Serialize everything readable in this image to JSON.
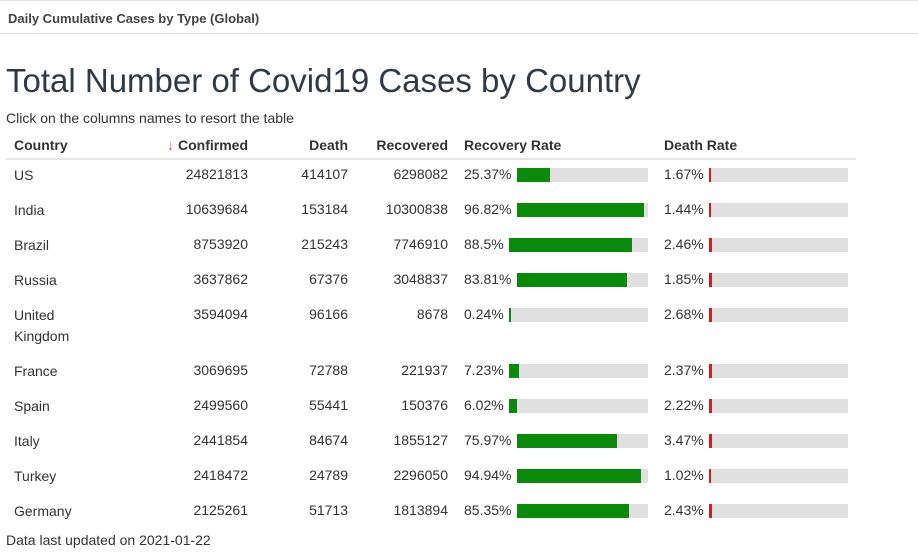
{
  "header": {
    "title": "Daily Cumulative Cases by Type (Global)"
  },
  "page_title": "Total Number of Covid19 Cases by Country",
  "subtitle": "Click on the columns names to resort the table",
  "table": {
    "columns": {
      "country": "Country",
      "sort_indicator": "↓",
      "confirmed": "Confirmed",
      "death": "Death",
      "recovered": "Recovered",
      "recovery_rate": "Recovery Rate",
      "death_rate": "Death Rate"
    },
    "rows": [
      {
        "country": "US",
        "confirmed": "24821813",
        "death": "414107",
        "recovered": "6298082",
        "recovery_rate": "25.37%",
        "recovery_fraction": 0.2537,
        "death_rate": "1.67%",
        "death_fraction": 0.0167
      },
      {
        "country": "India",
        "confirmed": "10639684",
        "death": "153184",
        "recovered": "10300838",
        "recovery_rate": "96.82%",
        "recovery_fraction": 0.9682,
        "death_rate": "1.44%",
        "death_fraction": 0.0144
      },
      {
        "country": "Brazil",
        "confirmed": "8753920",
        "death": "215243",
        "recovered": "7746910",
        "recovery_rate": "88.5%",
        "recovery_fraction": 0.885,
        "death_rate": "2.46%",
        "death_fraction": 0.0246
      },
      {
        "country": "Russia",
        "confirmed": "3637862",
        "death": "67376",
        "recovered": "3048837",
        "recovery_rate": "83.81%",
        "recovery_fraction": 0.8381,
        "death_rate": "1.85%",
        "death_fraction": 0.0185
      },
      {
        "country": "United Kingdom",
        "confirmed": "3594094",
        "death": "96166",
        "recovered": "8678",
        "recovery_rate": "0.24%",
        "recovery_fraction": 0.0024,
        "death_rate": "2.68%",
        "death_fraction": 0.0268
      },
      {
        "country": "France",
        "confirmed": "3069695",
        "death": "72788",
        "recovered": "221937",
        "recovery_rate": "7.23%",
        "recovery_fraction": 0.0723,
        "death_rate": "2.37%",
        "death_fraction": 0.0237
      },
      {
        "country": "Spain",
        "confirmed": "2499560",
        "death": "55441",
        "recovered": "150376",
        "recovery_rate": "6.02%",
        "recovery_fraction": 0.0602,
        "death_rate": "2.22%",
        "death_fraction": 0.0222
      },
      {
        "country": "Italy",
        "confirmed": "2441854",
        "death": "84674",
        "recovered": "1855127",
        "recovery_rate": "75.97%",
        "recovery_fraction": 0.7597,
        "death_rate": "3.47%",
        "death_fraction": 0.0347
      },
      {
        "country": "Turkey",
        "confirmed": "2418472",
        "death": "24789",
        "recovered": "2296050",
        "recovery_rate": "94.94%",
        "recovery_fraction": 0.9494,
        "death_rate": "1.02%",
        "death_fraction": 0.0102
      },
      {
        "country": "Germany",
        "confirmed": "2125261",
        "death": "51713",
        "recovered": "1813894",
        "recovery_rate": "85.35%",
        "recovery_fraction": 0.8535,
        "death_rate": "2.43%",
        "death_fraction": 0.0243
      }
    ]
  },
  "footer": {
    "text": "Data last updated on 2021-01-22"
  },
  "colors": {
    "recovery_bar": "#0a8a0a",
    "death_bar": "#d61c1c",
    "track": "#e0e0e0"
  }
}
